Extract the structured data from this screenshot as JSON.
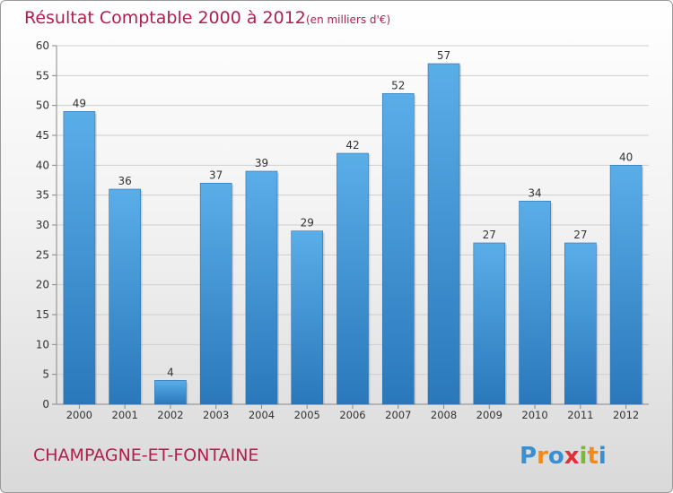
{
  "chart_data": {
    "type": "bar",
    "title": "Résultat Comptable 2000 à 2012",
    "unit_note": "(en milliers d'€)",
    "categories": [
      "2000",
      "2001",
      "2002",
      "2003",
      "2004",
      "2005",
      "2006",
      "2007",
      "2008",
      "2009",
      "2010",
      "2011",
      "2012"
    ],
    "values": [
      49,
      36,
      4,
      37,
      39,
      29,
      42,
      52,
      57,
      27,
      34,
      27,
      40
    ],
    "ylim": [
      0,
      60
    ],
    "yticks": [
      0,
      5,
      10,
      15,
      20,
      25,
      30,
      35,
      40,
      45,
      50,
      55,
      60
    ],
    "grid": true,
    "xlabel": "",
    "ylabel": "",
    "bar_color_top": "#5aaee8",
    "bar_color_bottom": "#2a78bb"
  },
  "footer": {
    "commune": "CHAMPAGNE-ET-FONTAINE",
    "logo": {
      "letters": [
        "P",
        "r",
        "o",
        "x",
        "i",
        "t",
        "i"
      ],
      "colors": [
        "#3a8fd0",
        "#f08a1c",
        "#3a8fd0",
        "#e0303a",
        "#7ab83a",
        "#f08a1c",
        "#3a8fd0"
      ]
    }
  }
}
